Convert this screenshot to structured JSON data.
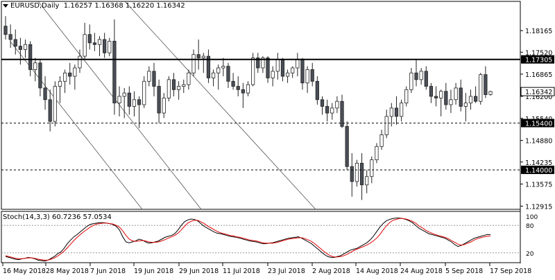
{
  "header": {
    "symbol": "EURUSD,Daily",
    "ohlc": "1.16257 1.16368 1.16220 1.16342"
  },
  "stoch_header": "Stoch(14,3,3) 60.7236 57.0534",
  "colors": {
    "bull": "#ffffff",
    "bear": "#4a4f57",
    "line": "#000000",
    "signal": "#e00000"
  },
  "chart_data": [
    {
      "type": "candlestick",
      "title": "EURUSD,Daily",
      "ylim": [
        1.1282,
        1.1875
      ],
      "y_ticks": [
        "1.18165",
        "1.17520",
        "1.16865",
        "1.16200",
        "1.15540",
        "1.14880",
        "1.14235",
        "1.13575",
        "1.12915"
      ],
      "x_ticks": [
        "16 May 2018",
        "28 May 2018",
        "7 Jun 2018",
        "19 Jun 2018",
        "29 Jun 2018",
        "11 Jul 2018",
        "23 Jul 2018",
        "2 Aug 2018",
        "14 Aug 2018",
        "24 Aug 2018",
        "5 Sep 2018",
        "17 Sep 2018"
      ],
      "levels": [
        {
          "label": "1.17305",
          "value": 1.17305,
          "style": "solid"
        },
        {
          "label": "1.15400",
          "value": 1.154,
          "style": "dashed"
        },
        {
          "label": "1.14000",
          "value": 1.14,
          "style": "dashed"
        }
      ],
      "last_price_label": "1.16342",
      "last_price": 1.16342,
      "candles": [
        [
          1.183,
          1.186,
          1.179,
          1.1805
        ],
        [
          1.1805,
          1.1835,
          1.1765,
          1.179
        ],
        [
          1.179,
          1.182,
          1.1745,
          1.177
        ],
        [
          1.177,
          1.1795,
          1.1715,
          1.176
        ],
        [
          1.176,
          1.179,
          1.1735,
          1.1775
        ],
        [
          1.1775,
          1.1785,
          1.168,
          1.17
        ],
        [
          1.17,
          1.1735,
          1.1665,
          1.172
        ],
        [
          1.172,
          1.173,
          1.162,
          1.1645
        ],
        [
          1.1645,
          1.168,
          1.158,
          1.161
        ],
        [
          1.161,
          1.164,
          1.1515,
          1.1545
        ],
        [
          1.1545,
          1.1665,
          1.153,
          1.165
        ],
        [
          1.165,
          1.168,
          1.16,
          1.1665
        ],
        [
          1.1665,
          1.17,
          1.163,
          1.169
        ],
        [
          1.169,
          1.172,
          1.1655,
          1.168
        ],
        [
          1.168,
          1.1715,
          1.164,
          1.1705
        ],
        [
          1.1705,
          1.176,
          1.169,
          1.174
        ],
        [
          1.174,
          1.184,
          1.173,
          1.1805
        ],
        [
          1.1805,
          1.1835,
          1.176,
          1.178
        ],
        [
          1.178,
          1.181,
          1.1755,
          1.1775
        ],
        [
          1.1775,
          1.18,
          1.174,
          1.179
        ],
        [
          1.179,
          1.181,
          1.1735,
          1.175
        ],
        [
          1.175,
          1.1795,
          1.174,
          1.1785
        ],
        [
          1.1785,
          1.185,
          1.1565,
          1.16
        ],
        [
          1.16,
          1.165,
          1.156,
          1.162
        ],
        [
          1.162,
          1.1645,
          1.1555,
          1.163
        ],
        [
          1.163,
          1.165,
          1.1565,
          1.159
        ],
        [
          1.159,
          1.1635,
          1.156,
          1.161
        ],
        [
          1.161,
          1.162,
          1.1525,
          1.1595
        ],
        [
          1.1595,
          1.168,
          1.1585,
          1.1665
        ],
        [
          1.1665,
          1.171,
          1.165,
          1.1695
        ],
        [
          1.1695,
          1.172,
          1.162,
          1.165
        ],
        [
          1.165,
          1.167,
          1.154,
          1.157
        ],
        [
          1.157,
          1.163,
          1.1555,
          1.1615
        ],
        [
          1.1615,
          1.168,
          1.1605,
          1.167
        ],
        [
          1.167,
          1.169,
          1.162,
          1.164
        ],
        [
          1.164,
          1.1665,
          1.161,
          1.165
        ],
        [
          1.165,
          1.167,
          1.163,
          1.1655
        ],
        [
          1.1655,
          1.17,
          1.164,
          1.169
        ],
        [
          1.169,
          1.176,
          1.168,
          1.1745
        ],
        [
          1.1745,
          1.179,
          1.17,
          1.1735
        ],
        [
          1.1735,
          1.175,
          1.169,
          1.174
        ],
        [
          1.174,
          1.176,
          1.166,
          1.1675
        ],
        [
          1.1675,
          1.17,
          1.165,
          1.169
        ],
        [
          1.169,
          1.1715,
          1.164,
          1.1705
        ],
        [
          1.1705,
          1.1735,
          1.168,
          1.171
        ],
        [
          1.171,
          1.172,
          1.1645,
          1.1665
        ],
        [
          1.1665,
          1.169,
          1.164,
          1.165
        ],
        [
          1.165,
          1.168,
          1.162,
          1.164
        ],
        [
          1.164,
          1.166,
          1.1585,
          1.163
        ],
        [
          1.163,
          1.1665,
          1.162,
          1.1655
        ],
        [
          1.1655,
          1.175,
          1.165,
          1.1735
        ],
        [
          1.1735,
          1.175,
          1.169,
          1.1705
        ],
        [
          1.1705,
          1.174,
          1.169,
          1.1735
        ],
        [
          1.1735,
          1.174,
          1.166,
          1.1675
        ],
        [
          1.1675,
          1.171,
          1.165,
          1.1695
        ],
        [
          1.1695,
          1.175,
          1.167,
          1.173
        ],
        [
          1.173,
          1.1735,
          1.1665,
          1.168
        ],
        [
          1.168,
          1.17,
          1.166,
          1.169
        ],
        [
          1.169,
          1.171,
          1.1675,
          1.1705
        ],
        [
          1.1705,
          1.175,
          1.168,
          1.173
        ],
        [
          1.173,
          1.1735,
          1.164,
          1.166
        ],
        [
          1.166,
          1.171,
          1.163,
          1.17
        ],
        [
          1.17,
          1.172,
          1.165,
          1.1665
        ],
        [
          1.1665,
          1.168,
          1.1595,
          1.161
        ],
        [
          1.161,
          1.162,
          1.1565,
          1.159
        ],
        [
          1.159,
          1.161,
          1.1545,
          1.157
        ],
        [
          1.157,
          1.16,
          1.155,
          1.1585
        ],
        [
          1.1585,
          1.162,
          1.157,
          1.1605
        ],
        [
          1.1605,
          1.1625,
          1.1525,
          1.153
        ],
        [
          1.153,
          1.1545,
          1.14,
          1.141
        ],
        [
          1.141,
          1.145,
          1.132,
          1.1365
        ],
        [
          1.1365,
          1.143,
          1.135,
          1.142
        ],
        [
          1.142,
          1.145,
          1.131,
          1.1355
        ],
        [
          1.1355,
          1.14,
          1.133,
          1.138
        ],
        [
          1.138,
          1.144,
          1.136,
          1.143
        ],
        [
          1.143,
          1.148,
          1.142,
          1.147
        ],
        [
          1.147,
          1.152,
          1.146,
          1.1505
        ],
        [
          1.1505,
          1.158,
          1.1495,
          1.156
        ],
        [
          1.156,
          1.16,
          1.153,
          1.1585
        ],
        [
          1.1585,
          1.162,
          1.1535,
          1.156
        ],
        [
          1.156,
          1.161,
          1.1545,
          1.16
        ],
        [
          1.16,
          1.165,
          1.159,
          1.164
        ],
        [
          1.164,
          1.1705,
          1.163,
          1.169
        ],
        [
          1.169,
          1.173,
          1.165,
          1.167
        ],
        [
          1.167,
          1.1705,
          1.1655,
          1.1695
        ],
        [
          1.1695,
          1.171,
          1.164,
          1.165
        ],
        [
          1.165,
          1.166,
          1.16,
          1.162
        ],
        [
          1.162,
          1.165,
          1.159,
          1.1615
        ],
        [
          1.1615,
          1.164,
          1.156,
          1.1635
        ],
        [
          1.1635,
          1.166,
          1.158,
          1.1595
        ],
        [
          1.1595,
          1.164,
          1.157,
          1.161
        ],
        [
          1.161,
          1.166,
          1.1595,
          1.1645
        ],
        [
          1.1645,
          1.167,
          1.1575,
          1.159
        ],
        [
          1.159,
          1.163,
          1.1545,
          1.16
        ],
        [
          1.16,
          1.164,
          1.158,
          1.162
        ],
        [
          1.162,
          1.165,
          1.16,
          1.1605
        ],
        [
          1.1605,
          1.169,
          1.1595,
          1.1685
        ],
        [
          1.1685,
          1.171,
          1.1615,
          1.1625
        ],
        [
          1.16257,
          1.16368,
          1.1622,
          1.16342
        ]
      ]
    },
    {
      "type": "line",
      "title": "Stoch(14,3,3) 60.7236 57.0534",
      "ylim": [
        0,
        100
      ],
      "y_ticks": [
        "100",
        "80",
        "20"
      ],
      "levels": [
        80,
        20
      ],
      "series": [
        {
          "values": [
            12,
            10,
            8,
            6,
            5,
            7,
            8,
            10,
            9,
            7,
            4,
            3,
            2,
            4,
            8,
            12,
            18,
            22,
            30,
            40,
            48,
            55,
            60,
            66,
            72,
            78,
            82,
            84,
            85,
            86,
            86,
            85,
            84,
            82,
            78,
            70,
            55,
            44,
            42,
            44,
            46,
            50,
            48,
            44,
            41,
            42,
            44,
            46,
            50,
            54,
            56,
            58,
            62,
            70,
            80,
            88,
            92,
            94,
            93,
            90,
            84,
            78,
            74,
            70,
            66,
            63,
            62,
            60,
            58,
            56,
            55,
            54,
            52,
            50,
            48,
            46,
            45,
            44,
            42,
            40,
            40,
            41,
            42,
            44,
            46,
            48,
            50,
            52,
            53,
            54,
            55,
            52,
            48,
            44,
            40,
            34,
            28,
            22,
            16,
            12,
            10,
            10,
            12,
            14,
            18,
            22,
            26,
            28,
            30,
            34,
            38,
            42,
            48,
            56,
            66,
            76,
            84,
            90,
            93,
            95,
            96,
            96,
            95,
            93,
            90,
            86,
            80,
            74,
            70,
            66,
            62,
            60,
            58,
            56,
            54,
            52,
            48,
            44,
            38,
            34,
            36,
            40,
            44,
            48,
            52,
            54,
            56,
            58,
            60,
            60
          ]
        },
        {
          "values": [
            14,
            12,
            10,
            8,
            7,
            7,
            8,
            9,
            9,
            8,
            6,
            5,
            4,
            4,
            6,
            9,
            13,
            18,
            24,
            31,
            39,
            47,
            54,
            60,
            66,
            71,
            76,
            80,
            83,
            84,
            85,
            85,
            84,
            83,
            80,
            76,
            68,
            58,
            50,
            46,
            45,
            46,
            47,
            46,
            44,
            43,
            43,
            44,
            46,
            49,
            52,
            55,
            58,
            63,
            70,
            78,
            85,
            89,
            91,
            91,
            88,
            84,
            79,
            75,
            71,
            67,
            64,
            62,
            60,
            58,
            57,
            55,
            54,
            52,
            50,
            48,
            47,
            46,
            44,
            42,
            41,
            41,
            41,
            42,
            44,
            46,
            48,
            50,
            51,
            52,
            53,
            53,
            51,
            48,
            45,
            40,
            34,
            28,
            22,
            17,
            13,
            11,
            11,
            12,
            14,
            17,
            21,
            25,
            28,
            31,
            34,
            37,
            41,
            46,
            52,
            60,
            70,
            79,
            86,
            91,
            93,
            95,
            95,
            94,
            92,
            89,
            85,
            79,
            75,
            70,
            66,
            63,
            60,
            58,
            56,
            54,
            51,
            47,
            43,
            39,
            37,
            38,
            41,
            44,
            48,
            51,
            53,
            55,
            56,
            57
          ]
        }
      ]
    }
  ]
}
